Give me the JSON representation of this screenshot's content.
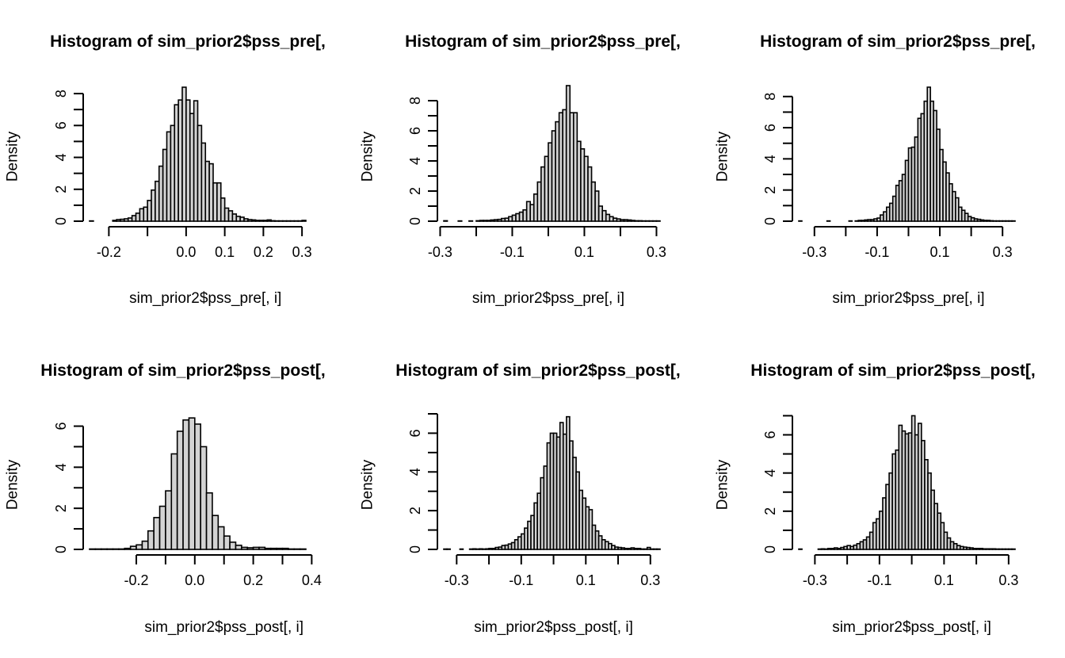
{
  "chart_data": [
    {
      "type": "bar",
      "title": "Histogram of sim_prior2$pss_pre[,",
      "xlabel": "sim_prior2$pss_pre[, i]",
      "ylabel": "Density",
      "xticks": [
        -0.2,
        -0.1,
        0.0,
        0.1,
        0.2,
        0.3
      ],
      "xtick_labels": [
        "-0.2",
        "",
        "0.0",
        "0.1",
        "0.2",
        "0.3"
      ],
      "yticks": [
        0,
        1,
        2,
        3,
        4,
        5,
        6,
        7,
        8
      ],
      "ytick_labels": [
        "0",
        "",
        "2",
        "",
        "4",
        "",
        "6",
        "",
        "8"
      ],
      "xlim": [
        -0.25,
        0.31
      ],
      "ylim": [
        0,
        8.5
      ],
      "bin_width": 0.01,
      "bin_start": -0.25,
      "values": [
        0.02,
        0,
        0,
        0,
        0,
        0,
        0.05,
        0.1,
        0.12,
        0.15,
        0.2,
        0.35,
        0.5,
        0.78,
        0.88,
        1.3,
        1.95,
        2.5,
        3.45,
        4.5,
        5.6,
        6.0,
        7.3,
        7.6,
        8.4,
        7.6,
        6.75,
        7.55,
        6.0,
        4.9,
        3.75,
        3.6,
        2.4,
        2.4,
        1.45,
        0.82,
        0.65,
        0.45,
        0.3,
        0.25,
        0.15,
        0.1,
        0.08,
        0.05,
        0.05,
        0.05,
        0.08,
        0.03,
        0.02,
        0.02,
        0.02,
        0.02,
        0.02,
        0.02,
        0.02,
        0.05
      ]
    },
    {
      "type": "bar",
      "title": "Histogram of sim_prior2$pss_pre[,",
      "xlabel": "sim_prior2$pss_pre[, i]",
      "ylabel": "Density",
      "xticks": [
        -0.3,
        -0.2,
        -0.1,
        0.0,
        0.1,
        0.2,
        0.3
      ],
      "xtick_labels": [
        "-0.3",
        "",
        "-0.1",
        "",
        "0.1",
        "",
        "0.3"
      ],
      "yticks": [
        0,
        1,
        2,
        3,
        4,
        5,
        6,
        7,
        8
      ],
      "ytick_labels": [
        "0",
        "",
        "2",
        "",
        "4",
        "",
        "6",
        "",
        "8"
      ],
      "xlim": [
        -0.29,
        0.31
      ],
      "ylim": [
        0,
        9
      ],
      "bin_width": 0.01,
      "bin_start": -0.29,
      "values": [
        0.03,
        0,
        0,
        0,
        0.02,
        0,
        0,
        0.02,
        0,
        0.03,
        0.05,
        0.05,
        0.05,
        0.08,
        0.1,
        0.12,
        0.18,
        0.2,
        0.3,
        0.4,
        0.5,
        0.6,
        0.75,
        1.3,
        1.1,
        1.8,
        2.6,
        3.6,
        4.3,
        5.2,
        6.0,
        6.6,
        7.2,
        7.4,
        9.0,
        7.2,
        7.2,
        5.3,
        4.8,
        4.3,
        3.6,
        2.6,
        2.0,
        1.0,
        0.7,
        0.45,
        0.3,
        0.2,
        0.15,
        0.1,
        0.1,
        0.08,
        0.05,
        0.03,
        0.03,
        0.02,
        0.02,
        0.02,
        0.02,
        0.02
      ]
    },
    {
      "type": "bar",
      "title": "Histogram of sim_prior2$pss_pre[,",
      "xlabel": "sim_prior2$pss_pre[, i]",
      "ylabel": "Density",
      "xticks": [
        -0.3,
        -0.2,
        -0.1,
        0.0,
        0.1,
        0.2,
        0.3
      ],
      "xtick_labels": [
        "-0.3",
        "",
        "-0.1",
        "",
        "0.1",
        "",
        "0.3"
      ],
      "yticks": [
        0,
        1,
        2,
        3,
        4,
        5,
        6,
        7,
        8
      ],
      "ytick_labels": [
        "0",
        "",
        "2",
        "",
        "4",
        "",
        "6",
        "",
        "8"
      ],
      "xlim": [
        -0.35,
        0.34
      ],
      "ylim": [
        0,
        8.7
      ],
      "bin_width": 0.01,
      "bin_start": -0.35,
      "values": [
        0.02,
        0,
        0,
        0,
        0,
        0,
        0,
        0,
        0,
        0.02,
        0,
        0,
        0,
        0,
        0,
        0,
        0.02,
        0,
        0.02,
        0.05,
        0.05,
        0.08,
        0.1,
        0.1,
        0.15,
        0.2,
        0.4,
        0.6,
        0.9,
        1.15,
        1.6,
        2.3,
        2.6,
        3.0,
        3.9,
        4.7,
        4.75,
        5.4,
        6.6,
        6.9,
        7.7,
        8.6,
        7.7,
        7.1,
        5.9,
        4.6,
        3.8,
        3.1,
        2.4,
        1.9,
        1.5,
        0.9,
        0.7,
        0.5,
        0.3,
        0.22,
        0.15,
        0.12,
        0.08,
        0.05,
        0.05,
        0.03,
        0.02,
        0.02,
        0.02,
        0.02,
        0.02,
        0.02,
        0.02
      ]
    },
    {
      "type": "bar",
      "title": "Histogram of sim_prior2$pss_post[,",
      "xlabel": "sim_prior2$pss_post[, i]",
      "ylabel": "Density",
      "xticks": [
        -0.2,
        -0.1,
        0.0,
        0.1,
        0.2,
        0.3,
        0.4
      ],
      "xtick_labels": [
        "-0.2",
        "",
        "0.0",
        "",
        "0.2",
        "",
        "0.4"
      ],
      "yticks": [
        0,
        1,
        2,
        3,
        4,
        5,
        6
      ],
      "ytick_labels": [
        "0",
        "",
        "2",
        "",
        "4",
        "",
        "6"
      ],
      "xlim": [
        -0.36,
        0.38
      ],
      "ylim": [
        0,
        6.6
      ],
      "bin_width": 0.02,
      "bin_start": -0.36,
      "values": [
        0.02,
        0.02,
        0.02,
        0.02,
        0.02,
        0.02,
        0.05,
        0.15,
        0.22,
        0.4,
        0.9,
        1.55,
        2.1,
        2.85,
        4.65,
        5.75,
        6.3,
        6.4,
        6.1,
        5.0,
        2.75,
        1.65,
        1.1,
        0.65,
        0.35,
        0.2,
        0.1,
        0.08,
        0.1,
        0.1,
        0.05,
        0.05,
        0.05,
        0.05,
        0.02,
        0.02,
        0.02
      ]
    },
    {
      "type": "bar",
      "title": "Histogram of sim_prior2$pss_post[,",
      "xlabel": "sim_prior2$pss_post[, i]",
      "ylabel": "Density",
      "xticks": [
        -0.3,
        -0.2,
        -0.1,
        0.0,
        0.1,
        0.2,
        0.3
      ],
      "xtick_labels": [
        "-0.3",
        "",
        "-0.1",
        "",
        "0.1",
        "",
        "0.3"
      ],
      "yticks": [
        0,
        1,
        2,
        3,
        4,
        5,
        6,
        7
      ],
      "ytick_labels": [
        "0",
        "",
        "2",
        "",
        "4",
        "",
        "6",
        ""
      ],
      "xlim": [
        -0.34,
        0.33
      ],
      "ylim": [
        0,
        7
      ],
      "bin_width": 0.01,
      "bin_start": -0.34,
      "values": [
        0.02,
        0.02,
        0,
        0,
        0,
        0.02,
        0,
        0,
        0.02,
        0.03,
        0.02,
        0.03,
        0.02,
        0.03,
        0.05,
        0.05,
        0.1,
        0.12,
        0.2,
        0.22,
        0.28,
        0.35,
        0.5,
        0.65,
        0.8,
        1.1,
        1.45,
        1.75,
        2.4,
        2.9,
        3.7,
        4.3,
        5.5,
        6.0,
        6.0,
        5.8,
        6.55,
        5.95,
        6.85,
        5.6,
        4.75,
        4.0,
        3.05,
        2.65,
        2.2,
        2.05,
        1.25,
        0.95,
        0.7,
        0.5,
        0.4,
        0.3,
        0.2,
        0.12,
        0.1,
        0.08,
        0.05,
        0.05,
        0.08,
        0.05,
        0.05,
        0.02,
        0.02,
        0.1,
        0.02,
        0.02,
        0.02
      ]
    },
    {
      "type": "bar",
      "title": "Histogram of sim_prior2$pss_post[,",
      "xlabel": "sim_prior2$pss_post[, i]",
      "ylabel": "Density",
      "xticks": [
        -0.3,
        -0.2,
        -0.1,
        0.0,
        0.1,
        0.2,
        0.3
      ],
      "xtick_labels": [
        "-0.3",
        "",
        "-0.1",
        "",
        "0.1",
        "",
        "0.3"
      ],
      "yticks": [
        0,
        1,
        2,
        3,
        4,
        5,
        6,
        7
      ],
      "ytick_labels": [
        "0",
        "",
        "2",
        "",
        "4",
        "",
        "6",
        ""
      ],
      "xlim": [
        -0.35,
        0.32
      ],
      "ylim": [
        0,
        7.1
      ],
      "bin_width": 0.01,
      "bin_start": -0.35,
      "values": [
        0.02,
        0,
        0,
        0,
        0,
        0,
        0.02,
        0.03,
        0.02,
        0.05,
        0.05,
        0.08,
        0.05,
        0.1,
        0.15,
        0.2,
        0.15,
        0.22,
        0.3,
        0.4,
        0.5,
        0.65,
        0.9,
        1.4,
        1.6,
        2.0,
        2.7,
        3.4,
        4.0,
        5.0,
        5.2,
        6.5,
        6.2,
        6.05,
        6.1,
        7.0,
        6.0,
        6.6,
        5.7,
        4.7,
        4.0,
        3.1,
        2.4,
        1.9,
        1.4,
        0.9,
        0.6,
        0.4,
        0.3,
        0.2,
        0.15,
        0.12,
        0.1,
        0.08,
        0.05,
        0.05,
        0.05,
        0.03,
        0.03,
        0.03,
        0.03,
        0.02,
        0.02,
        0.02,
        0.02,
        0.02,
        0.02
      ]
    }
  ]
}
